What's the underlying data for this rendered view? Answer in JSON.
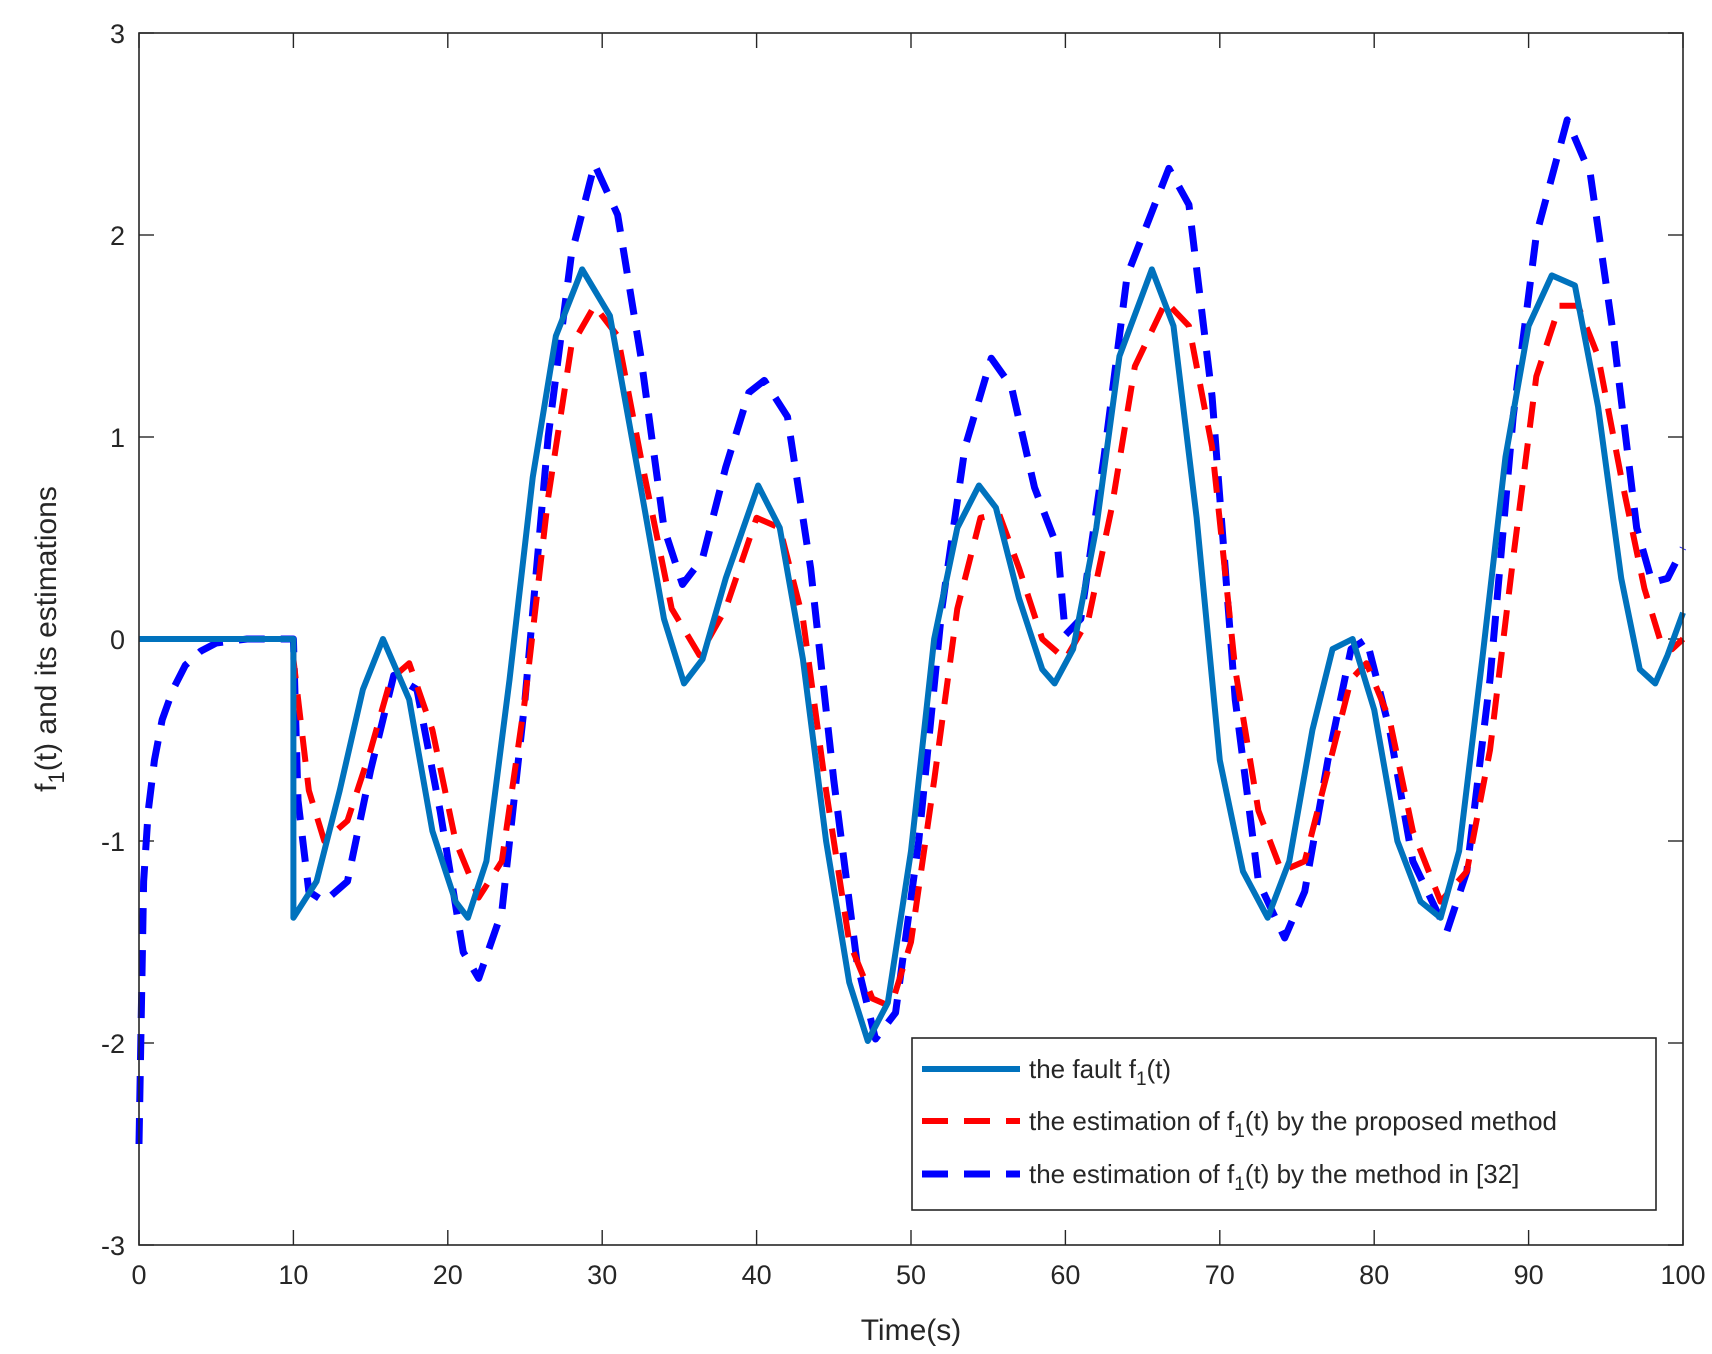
{
  "chart_data": {
    "type": "line",
    "title": "",
    "xlabel": "Time(s)",
    "ylabel": "f₁(t) and its estimations",
    "ylabel_parts": {
      "lead": "f",
      "sub": "1",
      "tail": "(t) and its estimations"
    },
    "xlim": [
      0,
      100
    ],
    "ylim": [
      -3,
      3
    ],
    "xticks": [
      0,
      10,
      20,
      30,
      40,
      50,
      60,
      70,
      80,
      90,
      100
    ],
    "yticks": [
      -3,
      -2,
      -1,
      0,
      1,
      2,
      3
    ],
    "grid": false,
    "legend_position": "bottom-right",
    "series": [
      {
        "name": "the fault f₁(t)",
        "legend_parts": {
          "lead": "the fault f",
          "sub": "1",
          "tail": "(t)"
        },
        "color": "#0072BD",
        "style": "solid",
        "x": [
          0,
          10,
          10,
          11.5,
          13,
          14.5,
          15.8,
          17.5,
          19,
          20.5,
          21.3,
          22.5,
          24,
          25.5,
          27,
          28.7,
          30.5,
          32.5,
          34,
          35.3,
          36.5,
          38,
          40.1,
          41.5,
          43,
          44.5,
          46,
          47.2,
          48.5,
          50,
          51.5,
          53,
          54.4,
          55.5,
          57,
          58.5,
          59.3,
          60.5,
          62,
          63.5,
          65.6,
          67,
          68.5,
          70,
          71.5,
          73.1,
          74.5,
          76,
          77.3,
          78.6,
          80,
          81.5,
          83,
          84.3,
          85.5,
          87,
          88.5,
          90,
          91.5,
          93,
          94.5,
          96,
          97.2,
          98.2,
          99,
          100
        ],
        "y": [
          0,
          0,
          -1.38,
          -1.2,
          -0.75,
          -0.25,
          0.0,
          -0.3,
          -0.95,
          -1.3,
          -1.38,
          -1.1,
          -0.2,
          0.8,
          1.5,
          1.83,
          1.6,
          0.75,
          0.1,
          -0.22,
          -0.1,
          0.3,
          0.76,
          0.55,
          -0.1,
          -1.0,
          -1.7,
          -1.99,
          -1.8,
          -1.05,
          0.0,
          0.55,
          0.76,
          0.65,
          0.2,
          -0.15,
          -0.22,
          -0.05,
          0.55,
          1.4,
          1.83,
          1.55,
          0.6,
          -0.6,
          -1.15,
          -1.38,
          -1.1,
          -0.45,
          -0.05,
          0.0,
          -0.35,
          -1.0,
          -1.3,
          -1.38,
          -1.05,
          -0.1,
          0.9,
          1.55,
          1.8,
          1.75,
          1.15,
          0.3,
          -0.15,
          -0.22,
          -0.08,
          0.13
        ]
      },
      {
        "name": "the estimation of f₁(t) by the proposed method",
        "legend_parts": {
          "lead": "the estimation of f",
          "sub": "1",
          "tail": "(t) by the proposed method"
        },
        "color": "#FF0000",
        "style": "dashed",
        "x": [
          0,
          10,
          10,
          11,
          12,
          13.5,
          15,
          16.3,
          17.5,
          19,
          20.5,
          22,
          23.5,
          25,
          26.5,
          28,
          29.5,
          31,
          32.5,
          34.5,
          36.3,
          38,
          40,
          41.5,
          43,
          44.5,
          46,
          47.5,
          48.7,
          50,
          51.5,
          53,
          54.5,
          55.7,
          57,
          58.5,
          60,
          61.5,
          63,
          64.5,
          66.5,
          68,
          69.5,
          71,
          72.5,
          74,
          75.5,
          77,
          78.5,
          79.5,
          81,
          82.5,
          84.3,
          86,
          87.5,
          89,
          90.5,
          92,
          93.2,
          94.5,
          96,
          97.5,
          98.5,
          99.3,
          100
        ],
        "y": [
          0,
          0,
          -0.1,
          -0.75,
          -1.0,
          -0.9,
          -0.55,
          -0.2,
          -0.12,
          -0.45,
          -1.0,
          -1.28,
          -1.1,
          -0.3,
          0.7,
          1.45,
          1.65,
          1.5,
          0.9,
          0.15,
          -0.08,
          0.15,
          0.6,
          0.55,
          0.1,
          -0.75,
          -1.5,
          -1.78,
          -1.82,
          -1.5,
          -0.7,
          0.15,
          0.6,
          0.62,
          0.35,
          0.0,
          -0.1,
          0.1,
          0.65,
          1.35,
          1.67,
          1.55,
          0.95,
          -0.15,
          -0.85,
          -1.15,
          -1.1,
          -0.65,
          -0.2,
          -0.12,
          -0.4,
          -0.95,
          -1.3,
          -1.15,
          -0.55,
          0.4,
          1.3,
          1.65,
          1.65,
          1.4,
          0.8,
          0.25,
          0.0,
          -0.05,
          0.0
        ]
      },
      {
        "name": "the estimation of f₁(t) by the method in [32]",
        "legend_parts": {
          "lead": "the estimation of f",
          "sub": "1",
          "tail": "(t) by the method in [32]"
        },
        "color": "#0000FF",
        "style": "dashed",
        "x": [
          0,
          0.3,
          0.6,
          1,
          1.5,
          2.2,
          3,
          4,
          5,
          7,
          10,
          10.3,
          11,
          12,
          13.5,
          15,
          16.5,
          18,
          19.5,
          21,
          22,
          23.5,
          25,
          26.5,
          28,
          29.5,
          31,
          32.5,
          34,
          35.2,
          36.5,
          38,
          39.5,
          40.5,
          42,
          43.5,
          45,
          46.5,
          47.7,
          49,
          50.5,
          52,
          53.5,
          55.2,
          56.5,
          58,
          59.5,
          60,
          61,
          62.5,
          64,
          66.7,
          68,
          69.5,
          71,
          72.5,
          74.2,
          75.5,
          77,
          78.5,
          79.5,
          81,
          82.5,
          84.7,
          86,
          87.5,
          89,
          90.5,
          92.5,
          94,
          95.5,
          97,
          98,
          99,
          100
        ],
        "y": [
          -2.5,
          -1.2,
          -0.85,
          -0.6,
          -0.4,
          -0.25,
          -0.13,
          -0.06,
          -0.02,
          0.0,
          0.0,
          -0.8,
          -1.25,
          -1.3,
          -1.2,
          -0.65,
          -0.18,
          -0.25,
          -0.85,
          -1.55,
          -1.68,
          -1.35,
          -0.3,
          1.0,
          1.9,
          2.35,
          2.1,
          1.4,
          0.55,
          0.27,
          0.4,
          0.85,
          1.22,
          1.28,
          1.1,
          0.35,
          -0.7,
          -1.6,
          -1.98,
          -1.85,
          -1.0,
          0.15,
          0.95,
          1.39,
          1.25,
          0.75,
          0.45,
          0.02,
          0.1,
          0.9,
          1.8,
          2.33,
          2.15,
          1.2,
          -0.3,
          -1.2,
          -1.48,
          -1.25,
          -0.6,
          -0.05,
          0.0,
          -0.45,
          -1.1,
          -1.45,
          -1.15,
          -0.2,
          1.1,
          2.0,
          2.57,
          2.3,
          1.5,
          0.55,
          0.28,
          0.3,
          0.45
        ]
      }
    ]
  }
}
